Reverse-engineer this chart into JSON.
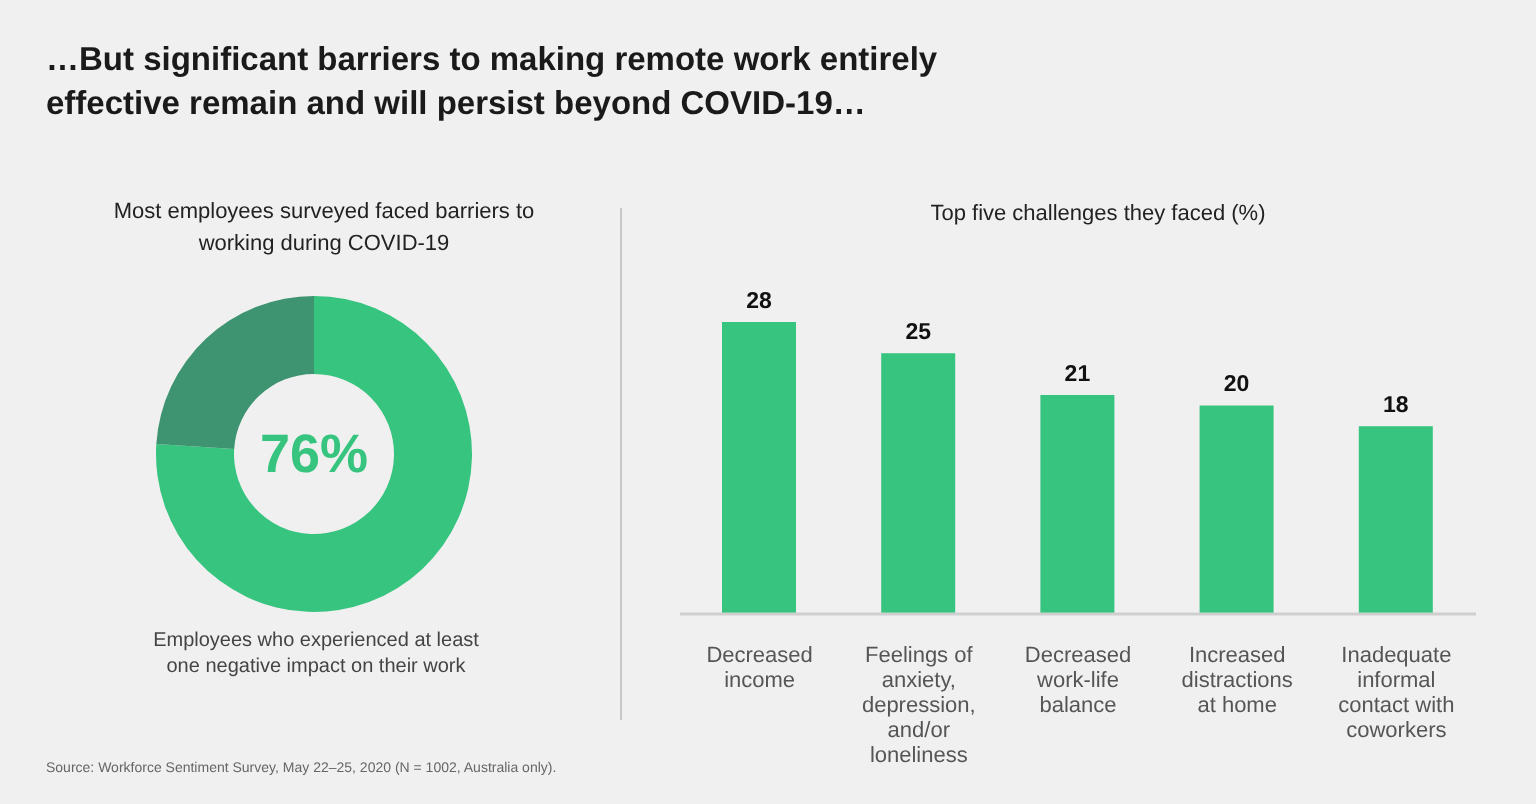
{
  "chart_data": [
    {
      "type": "donut",
      "title": "…But significant barriers to making remote work entirely effective remain and will persist beyond COVID-19…",
      "subtitle": "Most employees surveyed faced barriers to working during COVID-19",
      "categories": [
        "Employees who experienced at least one negative impact on their work",
        null
      ],
      "values": [
        76,
        24
      ],
      "colors": [
        "#36c47f",
        "#3e9470"
      ],
      "value_labels": [
        "76%",
        null
      ],
      "annotations": [
        "Source: Workforce Sentiment Survey, May 22–25, 2020 (N = 1002, Australia only)."
      ]
    },
    {
      "type": "bar",
      "title": "Top five challenges they faced (%)",
      "categories": [
        "Decreased income",
        "Feelings of anxiety, depression, and/or loneliness",
        "Decreased work-life balance",
        "Increased distractions at home",
        "Inadequate informal contact with coworkers"
      ],
      "values": [
        28,
        25,
        21,
        20,
        18
      ],
      "color": "#36c47f",
      "data_labels": true
    }
  ]
}
